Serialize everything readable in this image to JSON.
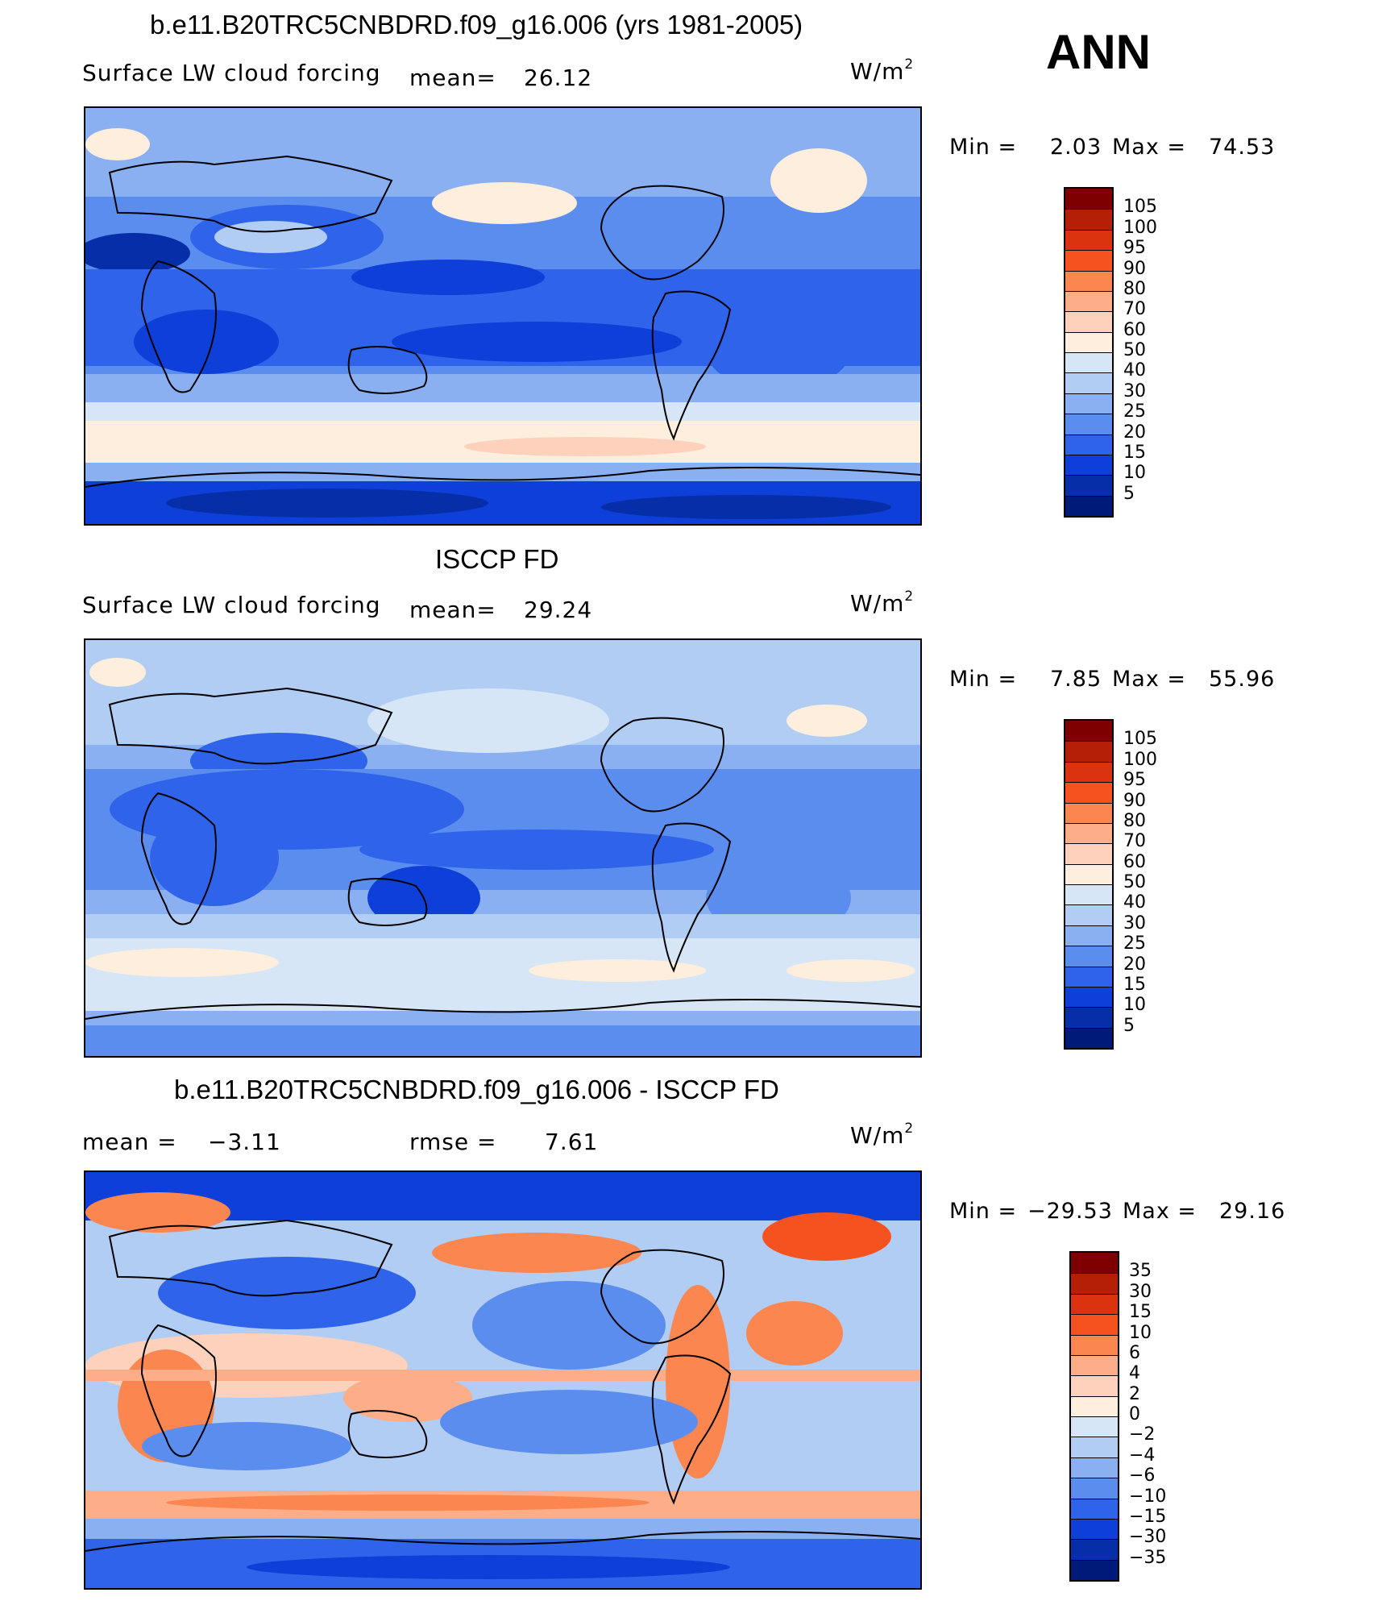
{
  "season": "ANN",
  "panels": [
    {
      "title": "b.e11.B20TRC5CNBDRD.f09_g16.006 (yrs 1981-2005)",
      "left_label": "Surface LW cloud forcing",
      "mean_label": "mean=",
      "mean_value": "26.12",
      "unit": "W/m",
      "unit_exp": "2",
      "min_label": "Min =",
      "min_value": "2.03",
      "max_label": "Max =",
      "max_value": "74.53",
      "colorbar": {
        "levels": [
          "105",
          "100",
          "95",
          "90",
          "80",
          "70",
          "60",
          "50",
          "40",
          "30",
          "25",
          "20",
          "15",
          "10",
          "5"
        ],
        "colors": [
          "#7f0000",
          "#b51f08",
          "#db330f",
          "#f5521f",
          "#fc8650",
          "#fdad88",
          "#fdd1bc",
          "#fdeedd",
          "#d6e6f7",
          "#b2cdf3",
          "#8ab0f2",
          "#5b8def",
          "#2f64ea",
          "#0e3fd8",
          "#052ea8",
          "#001a7a"
        ]
      },
      "style": "model"
    },
    {
      "title": "ISCCP FD",
      "left_label": "Surface LW cloud forcing",
      "mean_label": "mean=",
      "mean_value": "29.24",
      "unit": "W/m",
      "unit_exp": "2",
      "min_label": "Min =",
      "min_value": "7.85",
      "max_label": "Max =",
      "max_value": "55.96",
      "colorbar": {
        "levels": [
          "105",
          "100",
          "95",
          "90",
          "80",
          "70",
          "60",
          "50",
          "40",
          "30",
          "25",
          "20",
          "15",
          "10",
          "5"
        ],
        "colors": [
          "#7f0000",
          "#b51f08",
          "#db330f",
          "#f5521f",
          "#fc8650",
          "#fdad88",
          "#fdd1bc",
          "#fdeedd",
          "#d6e6f7",
          "#b2cdf3",
          "#8ab0f2",
          "#5b8def",
          "#2f64ea",
          "#0e3fd8",
          "#052ea8",
          "#001a7a"
        ]
      },
      "style": "obs"
    },
    {
      "title": "b.e11.B20TRC5CNBDRD.f09_g16.006 - ISCCP FD",
      "mean_label": "mean =",
      "mean_value": "−3.11",
      "rmse_label": "rmse =",
      "rmse_value": "7.61",
      "unit": "W/m",
      "unit_exp": "2",
      "min_label": "Min =",
      "min_value": "−29.53",
      "max_label": "Max =",
      "max_value": "29.16",
      "colorbar": {
        "levels": [
          "35",
          "30",
          "15",
          "10",
          "6",
          "4",
          "2",
          "0",
          "−2",
          "−4",
          "−6",
          "−10",
          "−15",
          "−30",
          "−35"
        ],
        "colors": [
          "#7f0000",
          "#b51f08",
          "#db330f",
          "#f5521f",
          "#fc8650",
          "#fdad88",
          "#fdd1bc",
          "#fdeedd",
          "#d6e6f7",
          "#b2cdf3",
          "#8ab0f2",
          "#5b8def",
          "#2f64ea",
          "#0e3fd8",
          "#052ea8",
          "#001a7a"
        ]
      },
      "style": "diff"
    }
  ]
}
